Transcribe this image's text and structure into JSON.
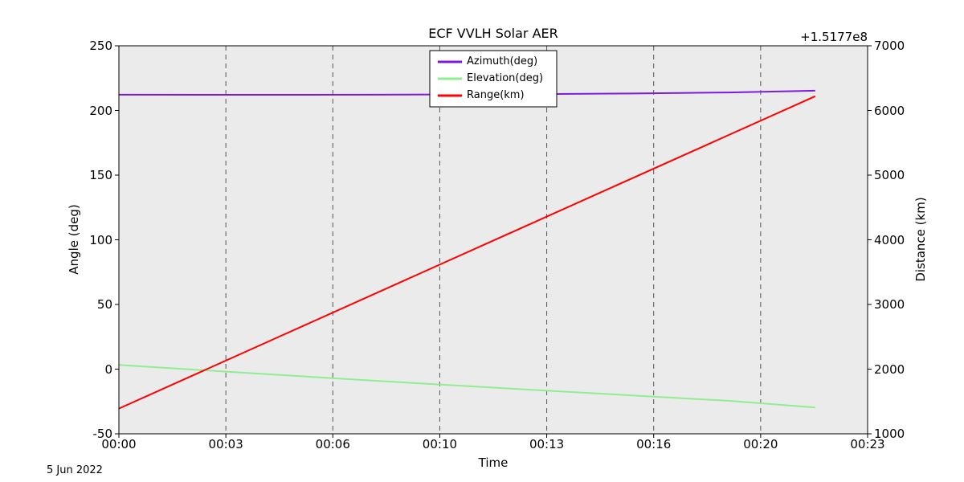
{
  "date_label": "5 Jun 2022",
  "chart_data": {
    "type": "line",
    "title": "ECF VVLH Solar AER",
    "xlabel": "Time",
    "ylabel_left": "Angle (deg)",
    "ylabel_right": "Distance (km)",
    "right_axis_offset": "+1.5177e8",
    "x_tick_labels": [
      "00:00",
      "00:03",
      "00:06",
      "00:10",
      "00:13",
      "00:16",
      "00:20",
      "00:23"
    ],
    "x_range_minutes": [
      0,
      23.3333
    ],
    "left_ylim": [
      -50,
      250
    ],
    "left_yticks": [
      -50,
      0,
      50,
      100,
      150,
      200,
      250
    ],
    "right_ylim": [
      1000,
      7000
    ],
    "right_yticks": [
      1000,
      2000,
      3000,
      4000,
      5000,
      6000,
      7000
    ],
    "grid": "vertical-dashed",
    "grid_color": "#555555",
    "plot_bg": "#ebebeb",
    "legend_position": "top-center",
    "series": [
      {
        "name": "Azimuth(deg)",
        "axis": "left",
        "color": "#7d1ae0",
        "points": [
          [
            0,
            212.2
          ],
          [
            4,
            212.1
          ],
          [
            8,
            212.2
          ],
          [
            12,
            212.5
          ],
          [
            16,
            213.1
          ],
          [
            19,
            213.9
          ],
          [
            21.7,
            215.3
          ]
        ]
      },
      {
        "name": "Elevation(deg)",
        "axis": "left",
        "color": "#90ee90",
        "points": [
          [
            0,
            3.2
          ],
          [
            4,
            -3.0
          ],
          [
            8,
            -9.0
          ],
          [
            12,
            -14.8
          ],
          [
            16,
            -20.3
          ],
          [
            19,
            -24.5
          ],
          [
            21.7,
            -29.7
          ]
        ]
      },
      {
        "name": "Range(km)",
        "axis": "right",
        "color": "#ff0000",
        "points": [
          [
            0,
            1390
          ],
          [
            5,
            2503
          ],
          [
            10,
            3616
          ],
          [
            15,
            4729
          ],
          [
            21.7,
            6220
          ]
        ]
      }
    ]
  }
}
